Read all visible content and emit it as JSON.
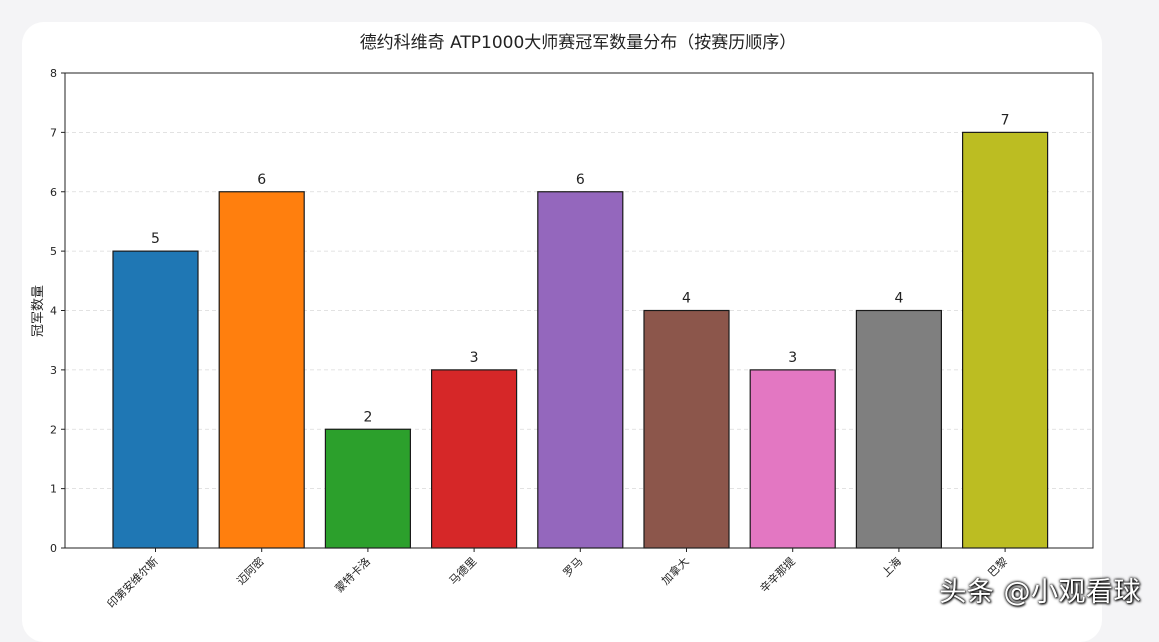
{
  "chart_data": {
    "type": "bar",
    "title": "德约科维奇 ATP1000大师赛冠军数量分布（按赛历顺序）",
    "xlabel": "",
    "ylabel": "冠军数量",
    "ylim": [
      0,
      8
    ],
    "yticks": [
      "0",
      "1",
      "2",
      "3",
      "4",
      "5",
      "6",
      "7",
      "8"
    ],
    "grid": "horizontal-dashed",
    "categories": [
      "印第安维尔斯",
      "迈阿密",
      "蒙特卡洛",
      "马德里",
      "罗马",
      "加拿大",
      "辛辛那提",
      "上海",
      "巴黎"
    ],
    "values": [
      5,
      6,
      2,
      3,
      6,
      4,
      3,
      4,
      7
    ],
    "colors": [
      "#1f77b4",
      "#ff7f0e",
      "#2ca02c",
      "#d62728",
      "#9467bd",
      "#8c564b",
      "#e377c2",
      "#7f7f7f",
      "#bcbd22"
    ]
  },
  "watermark": "头条 @小观看球"
}
